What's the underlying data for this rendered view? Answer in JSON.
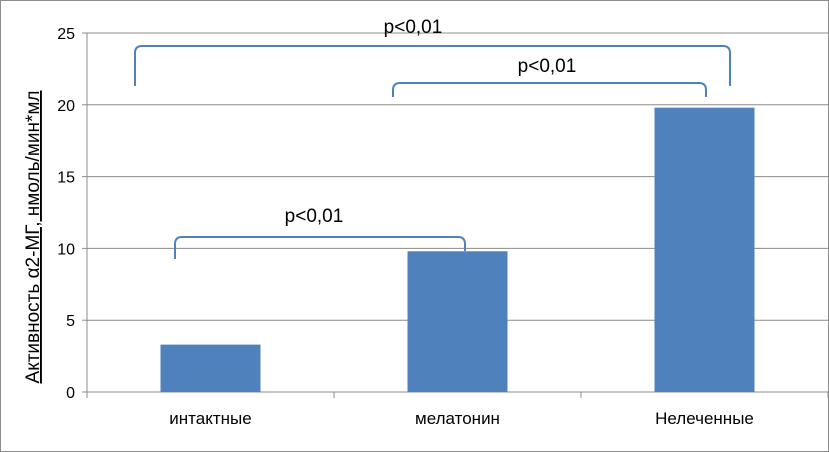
{
  "chart_data": {
    "type": "bar",
    "title": "",
    "xlabel": "",
    "ylabel": "Активность α2-МГ, нмоль/мин*мл",
    "categories": [
      "интактные",
      "мелатонин",
      "Нелеченные"
    ],
    "values": [
      3.3,
      9.8,
      19.8
    ],
    "ylim": [
      0,
      25
    ],
    "yticks": [
      0,
      5,
      10,
      15,
      20,
      25
    ],
    "grid": true,
    "legend": "none",
    "bar_color": "#4f81bd",
    "annotations": [
      {
        "text": "p<0,01",
        "from_category": "интактные",
        "to_category": "мелатонин"
      },
      {
        "text": "p<0,01",
        "from_category": "мелатонин",
        "to_category": "Нелеченные"
      },
      {
        "text": "p<0,01",
        "from_category": "интактные",
        "to_category": "Нелеченные"
      }
    ]
  }
}
